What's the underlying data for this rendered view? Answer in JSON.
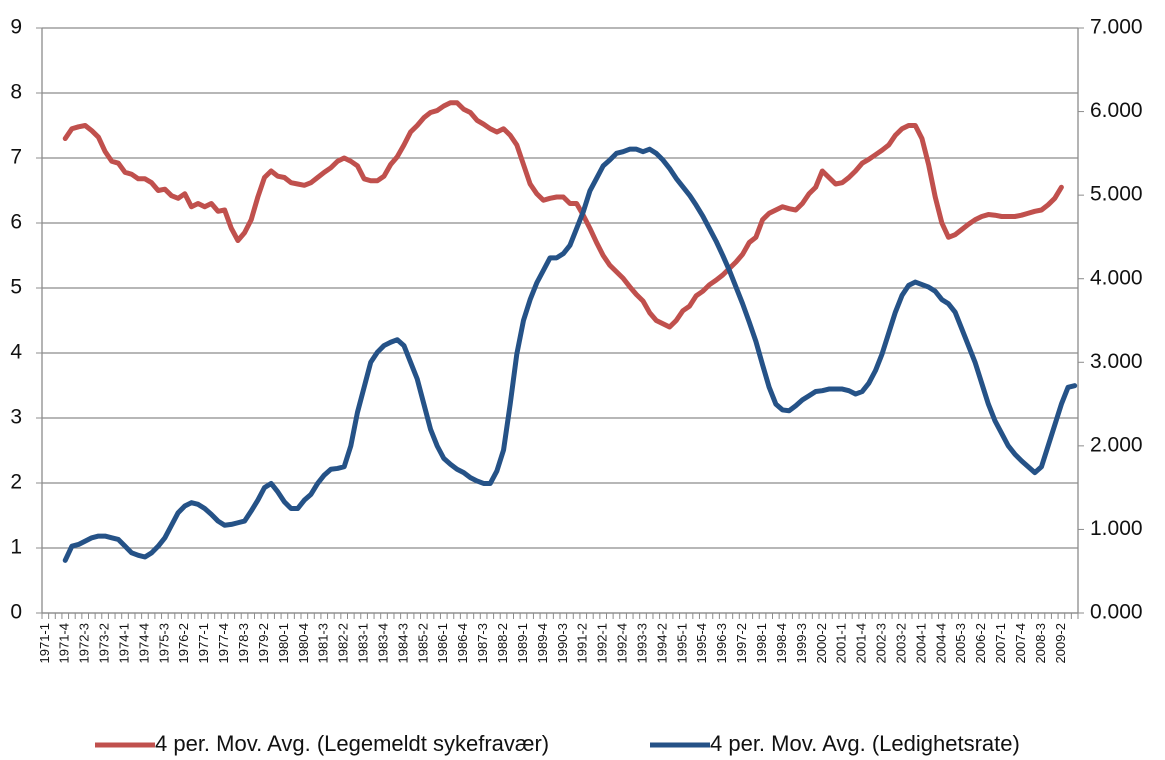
{
  "chart_data": {
    "type": "line",
    "categories": [
      "1971-1",
      null,
      null,
      "1971-4",
      null,
      null,
      "1972-3",
      null,
      null,
      "1973-2",
      null,
      null,
      "1974-1",
      null,
      null,
      "1974-4",
      null,
      null,
      "1975-3",
      null,
      null,
      "1976-2",
      null,
      null,
      "1977-1",
      null,
      null,
      "1977-4",
      null,
      null,
      "1978-3",
      null,
      null,
      "1979-2",
      null,
      null,
      "1980-1",
      null,
      null,
      "1980-4",
      null,
      null,
      "1981-3",
      null,
      null,
      "1982-2",
      null,
      null,
      "1983-1",
      null,
      null,
      "1983-4",
      null,
      null,
      "1984-3",
      null,
      null,
      "1985-2",
      null,
      null,
      "1986-1",
      null,
      null,
      "1986-4",
      null,
      null,
      "1987-3",
      null,
      null,
      "1988-2",
      null,
      null,
      "1989-1",
      null,
      null,
      "1989-4",
      null,
      null,
      "1990-3",
      null,
      null,
      "1991-2",
      null,
      null,
      "1992-1",
      null,
      null,
      "1992-4",
      null,
      null,
      "1993-3",
      null,
      null,
      "1994-2",
      null,
      null,
      "1995-1",
      null,
      null,
      "1995-4",
      null,
      null,
      "1996-3",
      null,
      null,
      "1997-2",
      null,
      null,
      "1998-1",
      null,
      null,
      "1998-4",
      null,
      null,
      "1999-3",
      null,
      null,
      "2000-2",
      null,
      null,
      "2001-1",
      null,
      null,
      "2001-4",
      null,
      null,
      "2002-3",
      null,
      null,
      "2003-2",
      null,
      null,
      "2004-1",
      null,
      null,
      "2004-4",
      null,
      null,
      "2005-3",
      null,
      null,
      "2006-2",
      null,
      null,
      "2007-1",
      null,
      null,
      "2007-4",
      null,
      null,
      "2008-3",
      null,
      null,
      "2009-2",
      null,
      null
    ],
    "series": [
      {
        "name": "4 per. Mov. Avg. (Legemeldt sykefravær)",
        "color": "#c0504d",
        "axis": "y",
        "values": [
          null,
          null,
          null,
          7.3,
          7.45,
          7.48,
          7.5,
          7.42,
          7.32,
          7.1,
          6.95,
          6.92,
          6.78,
          6.75,
          6.68,
          6.68,
          6.62,
          6.5,
          6.52,
          6.42,
          6.38,
          6.45,
          6.25,
          6.3,
          6.25,
          6.3,
          6.18,
          6.2,
          5.92,
          5.73,
          5.85,
          6.05,
          6.4,
          6.7,
          6.8,
          6.72,
          6.7,
          6.62,
          6.6,
          6.58,
          6.62,
          6.7,
          6.78,
          6.85,
          6.95,
          7.0,
          6.95,
          6.88,
          6.68,
          6.65,
          6.65,
          6.72,
          6.9,
          7.02,
          7.2,
          7.4,
          7.5,
          7.62,
          7.7,
          7.73,
          7.8,
          7.85,
          7.85,
          7.75,
          7.7,
          7.58,
          7.52,
          7.45,
          7.4,
          7.45,
          7.35,
          7.2,
          6.9,
          6.6,
          6.45,
          6.35,
          6.38,
          6.4,
          6.4,
          6.3,
          6.3,
          6.12,
          5.92,
          5.7,
          5.5,
          5.35,
          5.25,
          5.15,
          5.02,
          4.9,
          4.8,
          4.62,
          4.5,
          4.45,
          4.4,
          4.5,
          4.65,
          4.72,
          4.88,
          4.95,
          5.05,
          5.12,
          5.2,
          5.3,
          5.4,
          5.52,
          5.7,
          5.78,
          6.05,
          6.15,
          6.2,
          6.25,
          6.22,
          6.2,
          6.3,
          6.45,
          6.55,
          6.8,
          6.7,
          6.6,
          6.62,
          6.7,
          6.8,
          6.92,
          6.98,
          7.05,
          7.12,
          7.2,
          7.35,
          7.45,
          7.5,
          7.5,
          7.3,
          6.9,
          6.4,
          6.0,
          5.78,
          5.82,
          5.9,
          5.98,
          6.05,
          6.1,
          6.13,
          6.12,
          6.1,
          6.1,
          6.1,
          6.12,
          6.15,
          6.18,
          6.2,
          6.28,
          6.38,
          6.55,
          null,
          null
        ]
      },
      {
        "name": "4 per. Mov. Avg. (Ledighetsrate)",
        "color": "#255287",
        "axis": "y2",
        "values": [
          null,
          null,
          null,
          0.63,
          0.8,
          0.82,
          0.86,
          0.9,
          0.92,
          0.92,
          0.9,
          0.88,
          0.8,
          0.72,
          0.69,
          0.67,
          0.72,
          0.8,
          0.9,
          1.05,
          1.2,
          1.28,
          1.32,
          1.3,
          1.25,
          1.18,
          1.1,
          1.05,
          1.06,
          1.08,
          1.1,
          1.22,
          1.35,
          1.5,
          1.55,
          1.45,
          1.33,
          1.25,
          1.25,
          1.35,
          1.42,
          1.55,
          1.65,
          1.72,
          1.73,
          1.75,
          2.0,
          2.4,
          2.7,
          3.0,
          3.12,
          3.2,
          3.24,
          3.27,
          3.2,
          3.0,
          2.8,
          2.5,
          2.2,
          2.0,
          1.85,
          1.78,
          1.72,
          1.68,
          1.62,
          1.58,
          1.55,
          1.55,
          1.7,
          1.95,
          2.5,
          3.1,
          3.5,
          3.75,
          3.95,
          4.1,
          4.25,
          4.25,
          4.3,
          4.4,
          4.6,
          4.8,
          5.05,
          5.2,
          5.35,
          5.42,
          5.5,
          5.52,
          5.55,
          5.55,
          5.52,
          5.55,
          5.5,
          5.42,
          5.32,
          5.2,
          5.1,
          5.0,
          4.88,
          4.75,
          4.6,
          4.45,
          4.28,
          4.1,
          3.9,
          3.7,
          3.48,
          3.25,
          2.97,
          2.7,
          2.5,
          2.43,
          2.42,
          2.48,
          2.55,
          2.6,
          2.65,
          2.66,
          2.68,
          2.68,
          2.68,
          2.66,
          2.62,
          2.65,
          2.75,
          2.9,
          3.1,
          3.35,
          3.6,
          3.8,
          3.92,
          3.96,
          3.93,
          3.9,
          3.85,
          3.75,
          3.7,
          3.6,
          3.4,
          3.2,
          3.0,
          2.75,
          2.5,
          2.3,
          2.15,
          2.0,
          1.9,
          1.82,
          1.75,
          1.68,
          1.75,
          2.0,
          2.25,
          2.5,
          2.7,
          2.72
        ]
      }
    ],
    "ylim": [
      0,
      9
    ],
    "yticks": [
      0,
      1,
      2,
      3,
      4,
      5,
      6,
      7,
      8,
      9
    ],
    "y2lim": [
      0,
      7
    ],
    "y2ticks": [
      {
        "value": 0,
        "label": "0.000"
      },
      {
        "value": 1,
        "label": "1.000"
      },
      {
        "value": 2,
        "label": "2.000"
      },
      {
        "value": 3,
        "label": "3.000"
      },
      {
        "value": 4,
        "label": "4.000"
      },
      {
        "value": 5,
        "label": "5.000"
      },
      {
        "value": 6,
        "label": "6.000"
      },
      {
        "value": 7,
        "label": "7.000"
      }
    ],
    "grid": true,
    "legend": "bottom"
  }
}
